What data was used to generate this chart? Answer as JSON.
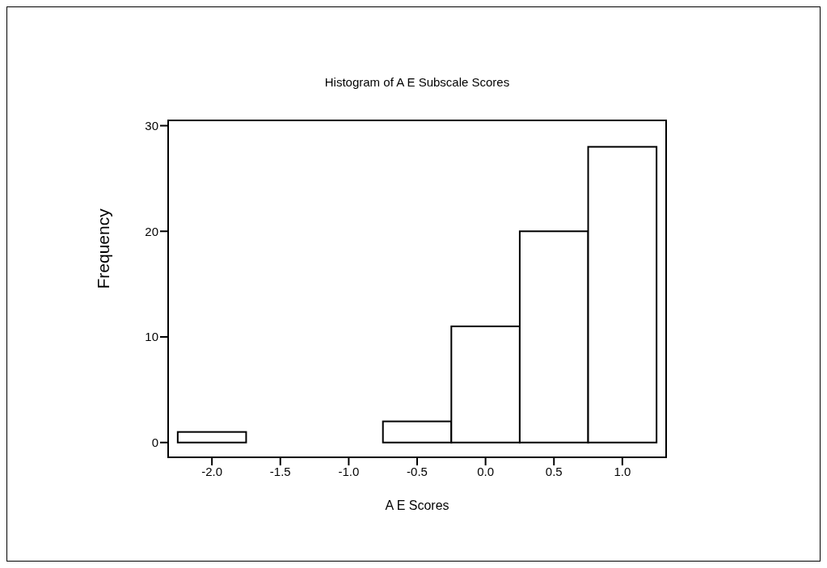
{
  "chart_data": {
    "type": "histogram",
    "title": "Histogram of A E Subscale Scores",
    "xlabel": "A E Scores",
    "ylabel": "Frequency",
    "bins": [
      -2.25,
      -1.75,
      -1.25,
      -0.75,
      -0.25,
      0.25,
      0.75,
      1.25
    ],
    "values": [
      1,
      0,
      0,
      2,
      11,
      20,
      28
    ],
    "color": "#ffffff",
    "xlim": [
      -2.32,
      1.32
    ],
    "xticks": [
      {
        "value": -2,
        "label": "-2.0"
      },
      {
        "value": -1.5,
        "label": "-1.5"
      },
      {
        "value": -1,
        "label": "-1.0"
      },
      {
        "value": -0.5,
        "label": "-0.5"
      },
      {
        "value": 0,
        "label": "0.0"
      },
      {
        "value": 0.5,
        "label": "0.5"
      },
      {
        "value": 1,
        "label": "1.0"
      }
    ],
    "ylim": [
      -1.4,
      30.5
    ],
    "yticks": [
      0,
      10,
      20,
      30
    ],
    "grid": false,
    "legend": false
  }
}
